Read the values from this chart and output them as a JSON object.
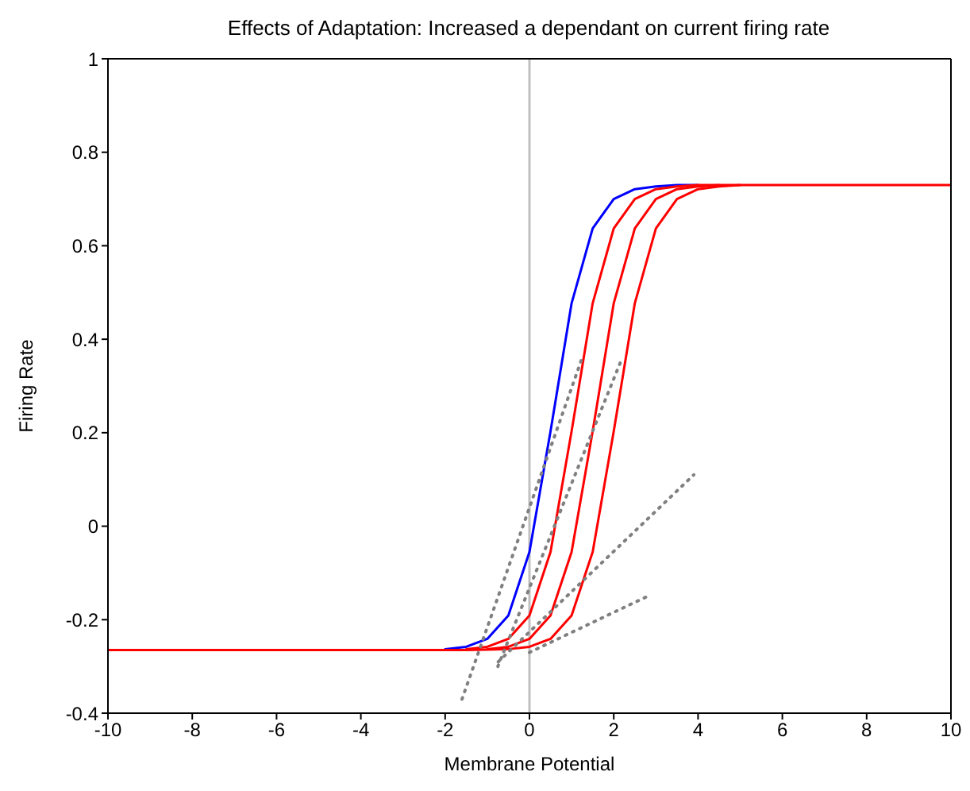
{
  "chart_data": {
    "type": "line",
    "title": "Effects of Adaptation: Increased a dependant on current firing rate",
    "xlabel": "Membrane Potential",
    "ylabel": "Firing Rate",
    "xlim": [
      -10,
      10
    ],
    "xticks": [
      -10,
      -8,
      -6,
      -4,
      -2,
      0,
      2,
      4,
      6,
      8,
      10
    ],
    "ylim": [
      -0.4,
      1
    ],
    "yticks": [
      -0.4,
      -0.2,
      0,
      0.2,
      0.4,
      0.6,
      0.8,
      1
    ],
    "marker": "none",
    "line_style": "solid",
    "x": [
      -10,
      -2,
      -1.5,
      -1,
      -0.5,
      0,
      0.5,
      1,
      1.5,
      2,
      2.5,
      3,
      3.5,
      4,
      4.5,
      5,
      5.5,
      10
    ],
    "series": [
      {
        "color": "#0000ff",
        "values": [
          null,
          -0.263,
          -0.258,
          -0.241,
          -0.191,
          -0.055,
          0.203,
          0.477,
          0.637,
          0.7,
          0.721,
          0.727,
          0.73,
          0.73,
          null,
          null,
          null,
          null
        ]
      },
      {
        "color": "#ff0000",
        "values": [
          null,
          null,
          -0.263,
          -0.258,
          -0.241,
          -0.191,
          -0.055,
          0.203,
          0.477,
          0.637,
          0.7,
          0.721,
          0.727,
          0.73,
          0.73,
          null,
          null,
          null
        ]
      },
      {
        "color": "#ff0000",
        "values": [
          null,
          null,
          null,
          -0.263,
          -0.258,
          -0.241,
          -0.191,
          -0.055,
          0.203,
          0.477,
          0.637,
          0.7,
          0.721,
          0.727,
          0.73,
          0.73,
          null,
          null
        ]
      },
      {
        "color": "#ff0000",
        "values": [
          -0.265,
          -0.265,
          -0.265,
          -0.264,
          -0.263,
          -0.258,
          -0.241,
          -0.191,
          -0.055,
          0.203,
          0.477,
          0.637,
          0.7,
          0.721,
          0.727,
          0.73,
          0.73,
          0.73
        ]
      },
      {
        "color": "#808080",
        "line_style": "dotted",
        "x": [
          -1.6,
          1.25
        ],
        "values": [
          -0.37,
          0.36
        ]
      },
      {
        "color": "#808080",
        "line_style": "dotted",
        "x": [
          -0.75,
          2.2
        ],
        "values": [
          -0.3,
          0.36
        ]
      },
      {
        "color": "#808080",
        "line_style": "dotted",
        "x": [
          -0.74,
          3.9
        ],
        "values": [
          -0.29,
          0.11
        ]
      },
      {
        "color": "#808080",
        "line_style": "dotted",
        "x": [
          0,
          2.8
        ],
        "values": [
          -0.27,
          -0.15
        ]
      }
    ],
    "ref_lines": [
      {
        "axis": "x",
        "value": 0,
        "color": "#c0c0c0"
      }
    ]
  }
}
